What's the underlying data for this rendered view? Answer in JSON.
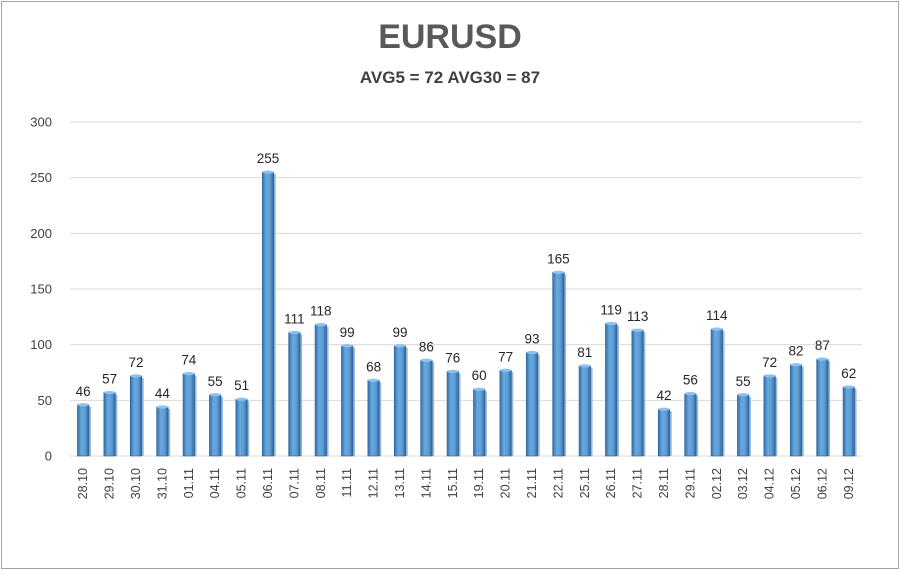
{
  "chart_data": {
    "type": "bar",
    "title": "EURUSD",
    "subtitle": "AVG5 = 72 AVG30 = 87",
    "categories": [
      "28.10",
      "29.10",
      "30.10",
      "31.10",
      "01.11",
      "04.11",
      "05.11",
      "06.11",
      "07.11",
      "08.11",
      "11.11",
      "12.11",
      "13.11",
      "14.11",
      "15.11",
      "19.11",
      "20.11",
      "21.11",
      "22.11",
      "25.11",
      "26.11",
      "27.11",
      "28.11",
      "29.11",
      "02.12",
      "03.12",
      "04.12",
      "05.12",
      "06.12",
      "09.12"
    ],
    "values": [
      46,
      57,
      72,
      44,
      74,
      55,
      51,
      255,
      111,
      118,
      99,
      68,
      99,
      86,
      76,
      60,
      77,
      93,
      165,
      81,
      119,
      113,
      42,
      56,
      114,
      55,
      72,
      82,
      87,
      62
    ],
    "ylim": [
      0,
      300
    ],
    "yticks": [
      0,
      50,
      100,
      150,
      200,
      250,
      300
    ],
    "grid": true,
    "bar_color": "#5b9bd5",
    "bar_color_dark": "#2e6fa8"
  }
}
